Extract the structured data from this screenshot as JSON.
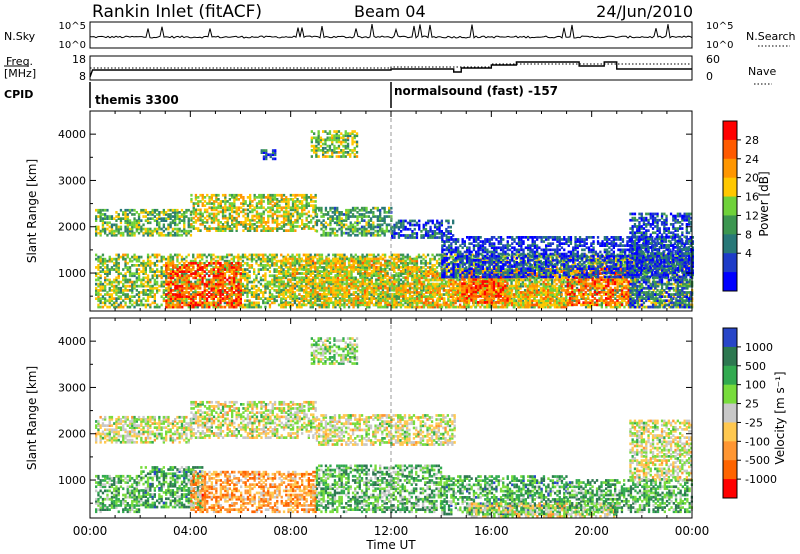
{
  "header": {
    "title": "Rankin Inlet (fitACF)",
    "beam": "Beam 04",
    "date": "24/Jun/2010"
  },
  "nsky_panel": {
    "left_label": "N.Sky",
    "right_label": "N.Search",
    "left_ticks": [
      "10^5",
      "10^0"
    ],
    "right_ticks": [
      "10^5",
      "10^0"
    ]
  },
  "freq_panel": {
    "left_label_1": "Freq.",
    "left_label_2": "[MHz]",
    "right_label": "Nave",
    "left_ticks": [
      "18",
      "8"
    ],
    "right_ticks": [
      "60",
      "0"
    ]
  },
  "cpid": {
    "label": "CPID",
    "segments": [
      {
        "name": "themis 3300",
        "start_hour": 0,
        "end_hour": 12
      },
      {
        "name": "normalsound (fast) -157",
        "start_hour": 12,
        "end_hour": 24
      }
    ]
  },
  "chart_data": [
    {
      "type": "heatmap",
      "name": "power",
      "ylabel": "Slant Range [km]",
      "xlabel": "Time UT",
      "xlim": [
        0,
        24
      ],
      "ylim": [
        180,
        4500
      ],
      "yticks": [
        "1000",
        "2000",
        "3000",
        "4000"
      ],
      "xticks": [
        "00:00",
        "04:00",
        "08:00",
        "12:00",
        "16:00",
        "20:00",
        "00:00"
      ],
      "colorbar": {
        "label": "Power [dB]",
        "ticks": [
          "28",
          "24",
          "20",
          "16",
          "12",
          "8",
          "4"
        ],
        "colors": [
          "#ff0000",
          "#ff5a00",
          "#ff9600",
          "#ffc800",
          "#6fd23a",
          "#3c9650",
          "#287878",
          "#1e3cc8",
          "#0000ff"
        ]
      },
      "regions": [
        {
          "t0": 0.2,
          "t1": 4.0,
          "r0": 1800,
          "r1": 2350,
          "level": 0.45
        },
        {
          "t0": 4.0,
          "t1": 9.0,
          "r0": 1900,
          "r1": 2700,
          "level": 0.55
        },
        {
          "t0": 9.0,
          "t1": 12.0,
          "r0": 1800,
          "r1": 2400,
          "level": 0.4
        },
        {
          "t0": 12.0,
          "t1": 14.5,
          "r0": 1750,
          "r1": 2150,
          "level": 0.2
        },
        {
          "t0": 8.8,
          "t1": 10.6,
          "r0": 3500,
          "r1": 4050,
          "level": 0.5
        },
        {
          "t0": 6.8,
          "t1": 7.4,
          "r0": 3450,
          "r1": 3650,
          "level": 0.2
        },
        {
          "t0": 0.2,
          "t1": 24.0,
          "r0": 250,
          "r1": 1400,
          "level": 0.5
        },
        {
          "t0": 3.0,
          "t1": 6.0,
          "r0": 250,
          "r1": 1200,
          "level": 0.85
        },
        {
          "t0": 7.5,
          "t1": 13.0,
          "r0": 300,
          "r1": 1300,
          "level": 0.6
        },
        {
          "t0": 13.0,
          "t1": 19.0,
          "r0": 250,
          "r1": 1100,
          "level": 0.65
        },
        {
          "t0": 14.8,
          "t1": 16.6,
          "r0": 350,
          "r1": 900,
          "level": 0.85
        },
        {
          "t0": 19.0,
          "t1": 21.5,
          "r0": 300,
          "r1": 1100,
          "level": 0.8
        },
        {
          "t0": 14.0,
          "t1": 24.0,
          "r0": 900,
          "r1": 1800,
          "level": 0.15
        },
        {
          "t0": 21.5,
          "t1": 24.0,
          "r0": 1000,
          "r1": 2300,
          "level": 0.2
        },
        {
          "t0": 21.5,
          "t1": 24.0,
          "r0": 250,
          "r1": 900,
          "level": 0.25
        }
      ]
    },
    {
      "type": "heatmap",
      "name": "velocity",
      "ylabel": "Slant Range [km]",
      "xlabel": "Time UT",
      "xlim": [
        0,
        24
      ],
      "ylim": [
        180,
        4500
      ],
      "yticks": [
        "1000",
        "2000",
        "3000",
        "4000"
      ],
      "xticks": [
        "00:00",
        "04:00",
        "08:00",
        "12:00",
        "16:00",
        "20:00",
        "00:00"
      ],
      "colorbar": {
        "label": "Velocity [m s⁻¹]",
        "ticks": [
          "1000",
          "500",
          "100",
          "25",
          "-25",
          "-100",
          "-500",
          "-1000"
        ],
        "colors": [
          "#2846c8",
          "#2d7850",
          "#32aa50",
          "#78dc3c",
          "#c8c8c8",
          "#ffc850",
          "#ff9632",
          "#ff6400",
          "#ff0000"
        ]
      },
      "regions": [
        {
          "t0": 0.2,
          "t1": 4.0,
          "r0": 1800,
          "r1": 2350,
          "level": 0.5
        },
        {
          "t0": 4.0,
          "t1": 9.0,
          "r0": 1900,
          "r1": 2700,
          "level": 0.5
        },
        {
          "t0": 9.0,
          "t1": 14.5,
          "r0": 1750,
          "r1": 2400,
          "level": 0.5
        },
        {
          "t0": 8.8,
          "t1": 10.6,
          "r0": 3500,
          "r1": 4050,
          "level": 0.6
        },
        {
          "t0": 0.2,
          "t1": 2.0,
          "r0": 300,
          "r1": 1100,
          "level": 0.68
        },
        {
          "t0": 2.0,
          "t1": 4.5,
          "r0": 400,
          "r1": 1300,
          "level": 0.72
        },
        {
          "t0": 4.0,
          "t1": 9.0,
          "r0": 300,
          "r1": 1200,
          "level": 0.3
        },
        {
          "t0": 9.0,
          "t1": 14.0,
          "r0": 300,
          "r1": 1300,
          "level": 0.68
        },
        {
          "t0": 14.0,
          "t1": 19.0,
          "r0": 250,
          "r1": 1100,
          "level": 0.72
        },
        {
          "t0": 15.0,
          "t1": 21.0,
          "r0": 200,
          "r1": 500,
          "level": 0.5
        },
        {
          "t0": 19.0,
          "t1": 24.0,
          "r0": 300,
          "r1": 1000,
          "level": 0.7
        },
        {
          "t0": 21.5,
          "t1": 24.0,
          "r0": 1000,
          "r1": 2300,
          "level": 0.5
        }
      ]
    }
  ]
}
